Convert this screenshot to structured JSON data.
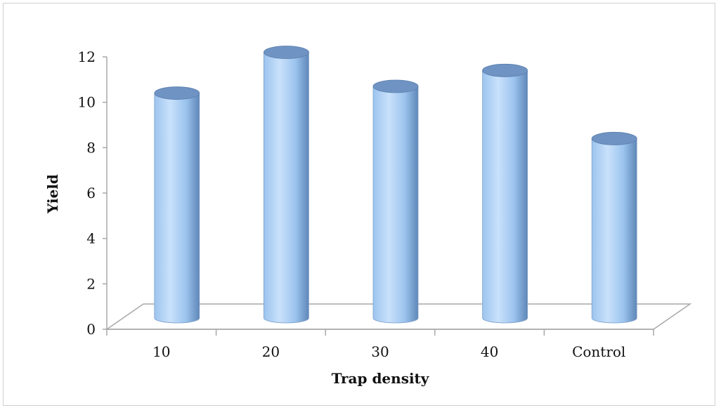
{
  "chart_data": {
    "type": "bar",
    "style": "3d-cylinder",
    "categories": [
      "10",
      "20",
      "30",
      "40",
      "Control"
    ],
    "values": [
      10.0,
      11.8,
      10.3,
      11.0,
      8.0
    ],
    "title": "",
    "xlabel": "Trap density",
    "ylabel": "Yield",
    "ylim": [
      0,
      12
    ],
    "yticks": [
      "0",
      "2",
      "4",
      "6",
      "8",
      "10",
      "12"
    ],
    "grid": false,
    "legend": "none",
    "colors": {
      "bar_light": "#c9e1fb",
      "bar_mid": "#9cc4ee",
      "bar_dark": "#5f87b8",
      "bar_top": "#6f93c2",
      "floor_line": "#a8a8a8"
    }
  }
}
